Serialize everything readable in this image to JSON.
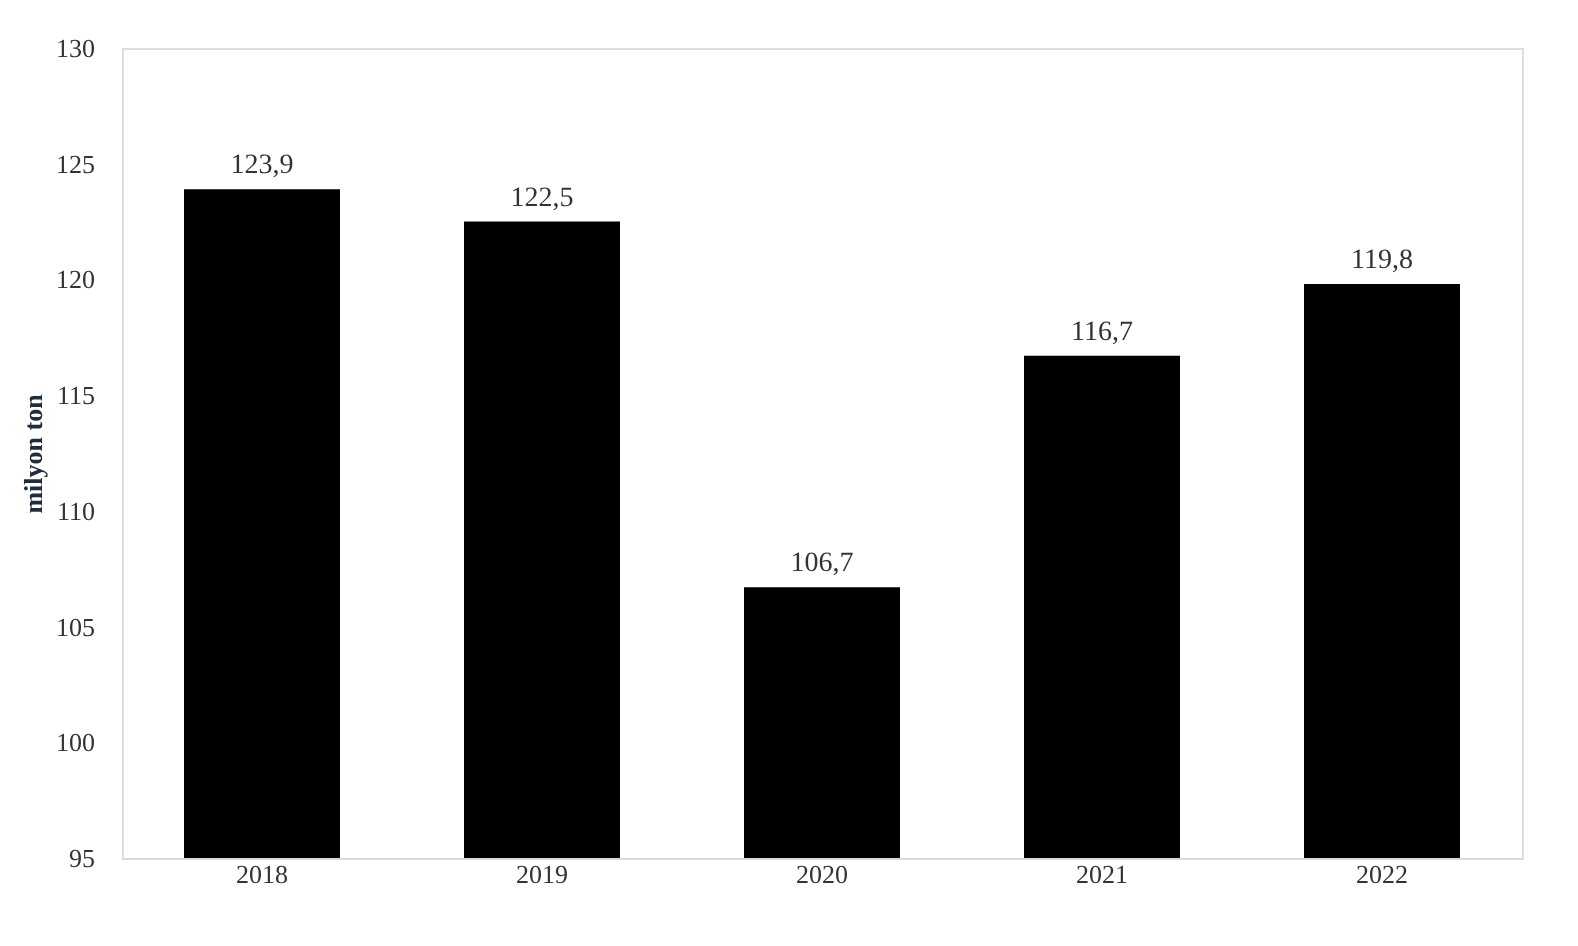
{
  "chart_data": {
    "type": "bar",
    "ylabel": "milyon ton",
    "categories": [
      "2018",
      "2019",
      "2020",
      "2021",
      "2022"
    ],
    "values": [
      123.9,
      122.5,
      106.7,
      116.7,
      119.8
    ],
    "value_labels": [
      "123,9",
      "122,5",
      "106,7",
      "116,7",
      "119,8"
    ],
    "color": "#000000",
    "ylim": [
      95,
      130
    ],
    "yticks": [
      95,
      100,
      105,
      110,
      115,
      120,
      125,
      130
    ],
    "grid": false
  }
}
